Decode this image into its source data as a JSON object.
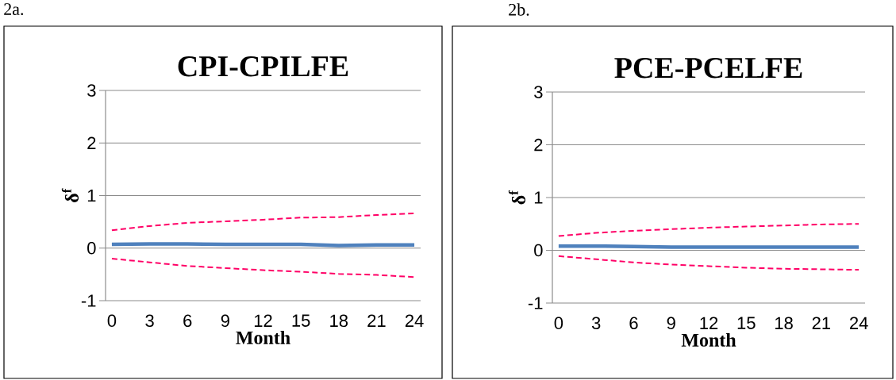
{
  "chart_data": [
    {
      "type": "line",
      "title": "CPI-CPILFE",
      "xlabel": "Month",
      "ylabel": "δ$^{f}$",
      "annotations": [
        "2a."
      ],
      "x": [
        0,
        3,
        6,
        9,
        12,
        15,
        18,
        21,
        24
      ],
      "xlim": [
        -0.5,
        24.5
      ],
      "xticks": [
        0,
        3,
        6,
        9,
        12,
        15,
        18,
        21,
        24
      ],
      "ylim": [
        -1,
        3
      ],
      "yticks": [
        -1,
        0,
        1,
        2,
        3
      ],
      "grid": "y",
      "series": [
        {
          "color": "#ff0066",
          "line_style": "dashed",
          "values": [
            0.34,
            0.42,
            0.48,
            0.51,
            0.54,
            0.58,
            0.59,
            0.63,
            0.66
          ]
        },
        {
          "color": "#ff0066",
          "line_style": "dashed",
          "values": [
            -0.2,
            -0.27,
            -0.34,
            -0.38,
            -0.42,
            -0.45,
            -0.49,
            -0.51,
            -0.55
          ]
        },
        {
          "color": "#4f81bd",
          "line_style": "solid",
          "values": [
            0.07,
            0.08,
            0.08,
            0.07,
            0.07,
            0.07,
            0.05,
            0.06,
            0.06
          ]
        }
      ]
    },
    {
      "type": "line",
      "title": "PCE-PCELFE",
      "xlabel": "Month",
      "ylabel": "δ$^{f}$",
      "annotations": [
        "2b."
      ],
      "x": [
        0,
        3,
        6,
        9,
        12,
        15,
        18,
        21,
        24
      ],
      "xlim": [
        -0.5,
        24.5
      ],
      "xticks": [
        0,
        3,
        6,
        9,
        12,
        15,
        18,
        21,
        24
      ],
      "ylim": [
        -1,
        3
      ],
      "yticks": [
        -1,
        0,
        1,
        2,
        3
      ],
      "grid": "y",
      "series": [
        {
          "color": "#ff0066",
          "line_style": "dashed",
          "values": [
            0.27,
            0.33,
            0.37,
            0.4,
            0.43,
            0.45,
            0.47,
            0.49,
            0.5
          ]
        },
        {
          "color": "#ff0066",
          "line_style": "dashed",
          "values": [
            -0.11,
            -0.17,
            -0.23,
            -0.27,
            -0.3,
            -0.33,
            -0.35,
            -0.36,
            -0.37
          ]
        },
        {
          "color": "#4f81bd",
          "line_style": "solid",
          "values": [
            0.08,
            0.08,
            0.07,
            0.06,
            0.06,
            0.06,
            0.06,
            0.06,
            0.06
          ]
        }
      ]
    }
  ]
}
